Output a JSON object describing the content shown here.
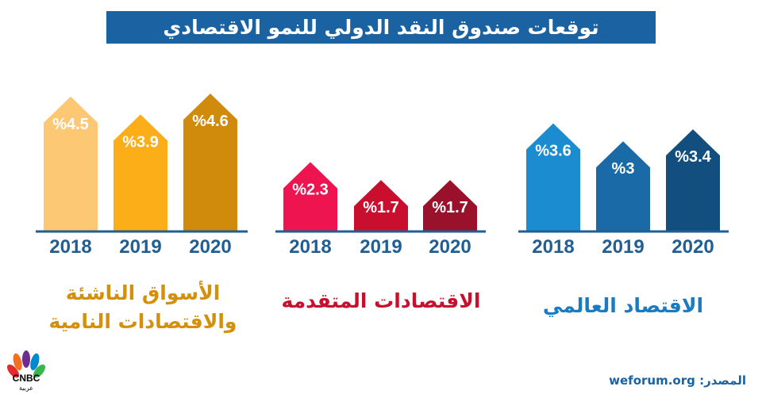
{
  "chart_data": {
    "type": "bar",
    "title": "توقعات صندوق النقد الدولي للنمو الاقتصادي",
    "categories": [
      "2018",
      "2019",
      "2020"
    ],
    "value_format": "%{v}",
    "series": [
      {
        "name": "الأسواق الناشئة والاقتصادات النامية",
        "values": [
          4.5,
          3.9,
          4.6
        ],
        "labels": [
          "%4.5",
          "%3.9",
          "%4.6"
        ],
        "colors": [
          "#fcc874",
          "#fbae17",
          "#d08a0c"
        ],
        "label_color": "#d4900a"
      },
      {
        "name": "الاقتصادات المتقدمة",
        "values": [
          2.3,
          1.7,
          1.7
        ],
        "labels": [
          "%2.3",
          "%1.7",
          "%1.7"
        ],
        "colors": [
          "#ee1450",
          "#c8102e",
          "#99112a"
        ],
        "label_color": "#c8102e"
      },
      {
        "name": "الاقتصاد العالمي",
        "values": [
          3.6,
          3.0,
          3.4
        ],
        "labels": [
          "%3.6",
          "%3",
          "%3.4"
        ],
        "colors": [
          "#1b8ccf",
          "#1a6aa8",
          "#134f7e"
        ],
        "label_color": "#1a7bc0"
      }
    ],
    "axis_color": "#1f5f95",
    "ylim": [
      0,
      4.6
    ],
    "grid": false
  },
  "source": "المصدر: weforum.org",
  "logo": {
    "text": "CNBC عربية"
  }
}
